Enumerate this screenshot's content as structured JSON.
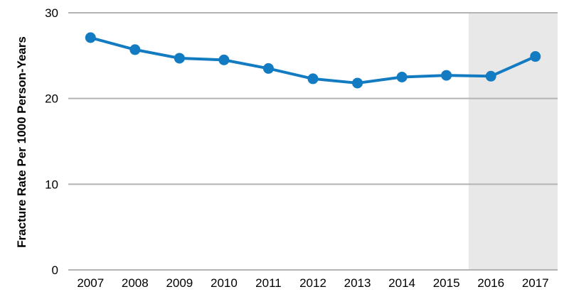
{
  "chart_data": {
    "type": "line",
    "title": "",
    "xlabel": "",
    "ylabel": "Fracture Rate Per 1000 Person-Years",
    "categories": [
      "2007",
      "2008",
      "2009",
      "2010",
      "2011",
      "2012",
      "2013",
      "2014",
      "2015",
      "2016",
      "2017"
    ],
    "series": [
      {
        "values": [
          27.1,
          25.7,
          24.7,
          24.5,
          23.5,
          22.3,
          21.8,
          22.5,
          22.7,
          22.6,
          24.9
        ]
      }
    ],
    "ylim": [
      0,
      30
    ],
    "yticks": [
      0,
      10,
      20,
      30
    ],
    "grid": true,
    "highlight_range": [
      "2016",
      "2017"
    ],
    "colors": {
      "line": "#137bc1",
      "grid": "#b3b3b3",
      "highlight": "#e8e8e8"
    }
  }
}
